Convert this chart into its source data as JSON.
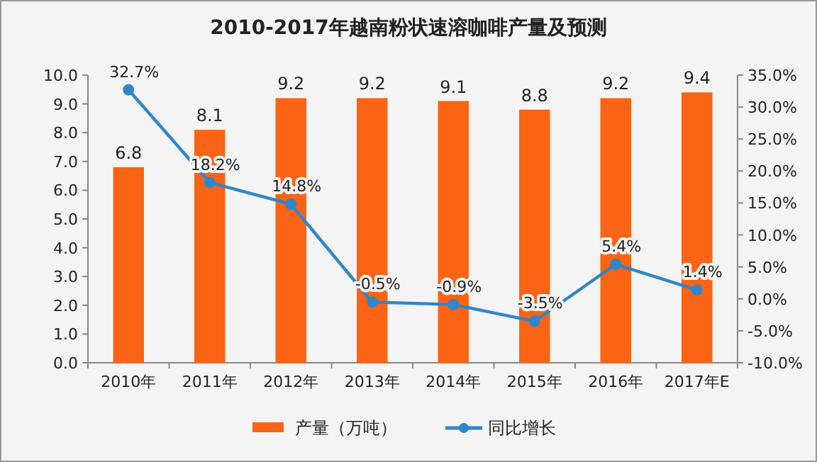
{
  "chart_data": {
    "type": "bar",
    "title": "2010-2017年越南粉状速溶咖啡产量及预测",
    "categories": [
      "2010年",
      "2011年",
      "2012年",
      "2013年",
      "2014年",
      "2015年",
      "2016年",
      "2017年E"
    ],
    "series": [
      {
        "name": "产量（万吨）",
        "color": "#fa6414",
        "values": [
          6.8,
          8.1,
          9.2,
          9.2,
          9.1,
          8.8,
          9.2,
          9.4
        ],
        "value_labels": [
          "6.8",
          "8.1",
          "9.2",
          "9.2",
          "9.1",
          "8.8",
          "9.2",
          "9.4"
        ]
      },
      {
        "name": "同比增长",
        "type": "line",
        "axis": "y2",
        "color": "#2f86c8",
        "marker": "circle",
        "values": [
          32.7,
          18.2,
          14.8,
          -0.5,
          -0.9,
          -3.5,
          5.4,
          1.4
        ],
        "value_labels": [
          "32.7%",
          "18.2%",
          "14.8%",
          "-0.5%",
          "-0.9%",
          "-3.5%",
          "5.4%",
          "1.4%"
        ]
      }
    ],
    "ylim": [
      0,
      10
    ],
    "yticks": [
      {
        "value": 0,
        "label": "0.0"
      },
      {
        "value": 1,
        "label": "1.0"
      },
      {
        "value": 2,
        "label": "2.0"
      },
      {
        "value": 3,
        "label": "3.0"
      },
      {
        "value": 4,
        "label": "4.0"
      },
      {
        "value": 5,
        "label": "5.0"
      },
      {
        "value": 6,
        "label": "6.0"
      },
      {
        "value": 7,
        "label": "7.0"
      },
      {
        "value": 8,
        "label": "8.0"
      },
      {
        "value": 9,
        "label": "9.0"
      },
      {
        "value": 10,
        "label": "10.0"
      }
    ],
    "y2lim": [
      -10,
      35
    ],
    "y2ticks": [
      {
        "value": -10,
        "label": "-10.0%"
      },
      {
        "value": -5,
        "label": "-5.0%"
      },
      {
        "value": 0,
        "label": "0.0%"
      },
      {
        "value": 5,
        "label": "5.0%"
      },
      {
        "value": 10,
        "label": "10.0%"
      },
      {
        "value": 15,
        "label": "15.0%"
      },
      {
        "value": 20,
        "label": "20.0%"
      },
      {
        "value": 25,
        "label": "25.0%"
      },
      {
        "value": 30,
        "label": "30.0%"
      },
      {
        "value": 35,
        "label": "35.0%"
      }
    ],
    "legend": "bottom"
  }
}
